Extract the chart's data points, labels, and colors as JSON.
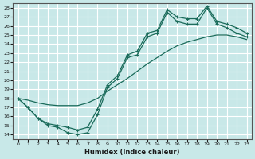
{
  "xlabel": "Humidex (Indice chaleur)",
  "bg_color": "#c8e8e8",
  "line_color": "#1a6b5a",
  "grid_color": "#ffffff",
  "xlim": [
    -0.5,
    23.5
  ],
  "ylim": [
    13.5,
    28.5
  ],
  "xticks": [
    0,
    1,
    2,
    3,
    4,
    5,
    6,
    7,
    8,
    9,
    10,
    11,
    12,
    13,
    14,
    15,
    16,
    17,
    18,
    19,
    20,
    21,
    22,
    23
  ],
  "yticks": [
    14,
    15,
    16,
    17,
    18,
    19,
    20,
    21,
    22,
    23,
    24,
    25,
    26,
    27,
    28
  ],
  "line1_x": [
    0,
    1,
    2,
    3,
    4,
    5,
    6,
    7,
    8,
    9,
    10,
    11,
    12,
    13,
    14,
    15,
    16,
    17,
    18,
    19,
    20,
    21,
    22,
    23
  ],
  "line1_y": [
    18.0,
    17.0,
    15.8,
    15.0,
    14.8,
    14.2,
    14.0,
    14.2,
    16.2,
    19.2,
    20.2,
    22.5,
    22.8,
    24.8,
    25.2,
    27.5,
    26.5,
    26.2,
    26.2,
    28.0,
    26.2,
    25.8,
    25.2,
    24.8
  ],
  "line2_x": [
    0,
    1,
    2,
    3,
    4,
    5,
    6,
    7,
    8,
    9,
    10,
    11,
    12,
    13,
    14,
    15,
    16,
    17,
    18,
    19,
    20,
    21,
    22,
    23
  ],
  "line2_y": [
    18.0,
    17.0,
    15.8,
    15.2,
    15.0,
    14.8,
    14.5,
    14.8,
    16.8,
    19.5,
    20.5,
    22.8,
    23.2,
    25.2,
    25.5,
    27.8,
    27.0,
    26.8,
    26.8,
    28.2,
    26.5,
    26.2,
    25.8,
    25.2
  ],
  "line3_x": [
    0,
    1,
    2,
    3,
    4,
    5,
    6,
    7,
    8,
    9,
    10,
    11,
    12,
    13,
    14,
    15,
    16,
    17,
    18,
    19,
    20,
    21,
    22,
    23
  ],
  "line3_y": [
    18.0,
    17.8,
    17.5,
    17.3,
    17.2,
    17.2,
    17.2,
    17.5,
    18.0,
    18.8,
    19.5,
    20.2,
    21.0,
    21.8,
    22.5,
    23.2,
    23.8,
    24.2,
    24.5,
    24.8,
    25.0,
    25.0,
    24.8,
    24.5
  ]
}
